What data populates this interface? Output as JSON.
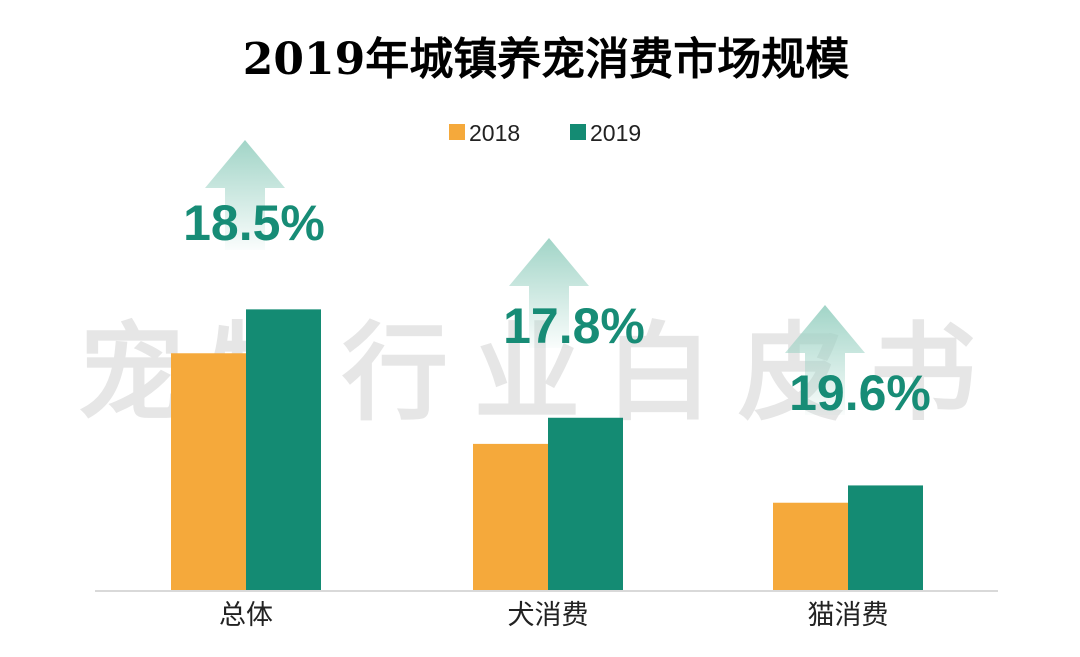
{
  "chart_data": {
    "type": "bar",
    "title": "2019年城镇养宠消费市场规模",
    "categories": [
      "总体",
      "犬消费",
      "猫消费"
    ],
    "series": [
      {
        "name": "2018",
        "values": [
          202.0,
          125.0,
          75.0
        ]
      },
      {
        "name": "2019",
        "values": [
          239.3,
          147.2,
          89.7
        ]
      }
    ],
    "growth_labels": [
      "18.5%",
      "17.8%",
      "19.6%"
    ],
    "ylim": [
      0,
      260
    ],
    "grid": false,
    "legend": "top-center",
    "watermark": "宠物行业白皮书"
  },
  "colors": {
    "series_2018": "#F5A93B",
    "series_2019": "#148B73",
    "growth_text": "#178C76",
    "arrow": "#9CD2C4",
    "axis": "#D9D9D9",
    "watermark": "#E6E6E6",
    "title": "#000000",
    "label": "#222222"
  }
}
